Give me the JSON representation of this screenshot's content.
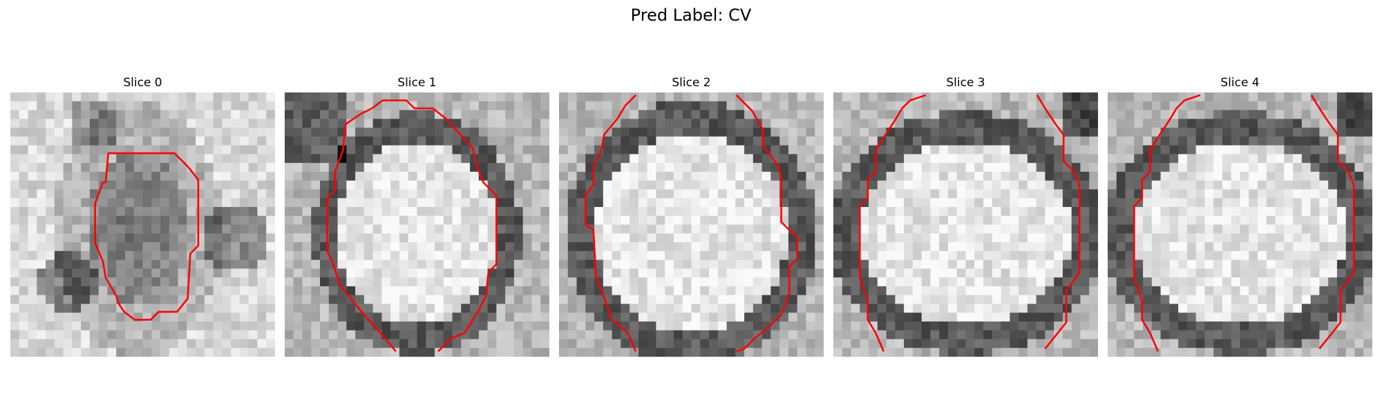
{
  "figure": {
    "title": "Pred Label: CV"
  },
  "contour_color": "#ff0000",
  "panels": [
    {
      "title": "Slice 0",
      "seed": 11,
      "style": "blob"
    },
    {
      "title": "Slice 1",
      "seed": 23,
      "style": "ellipse-small"
    },
    {
      "title": "Slice 2",
      "seed": 37,
      "style": "ellipse-large"
    },
    {
      "title": "Slice 3",
      "seed": 41,
      "style": "ellipse-wide"
    },
    {
      "title": "Slice 4",
      "seed": 53,
      "style": "ellipse-wide"
    }
  ]
}
